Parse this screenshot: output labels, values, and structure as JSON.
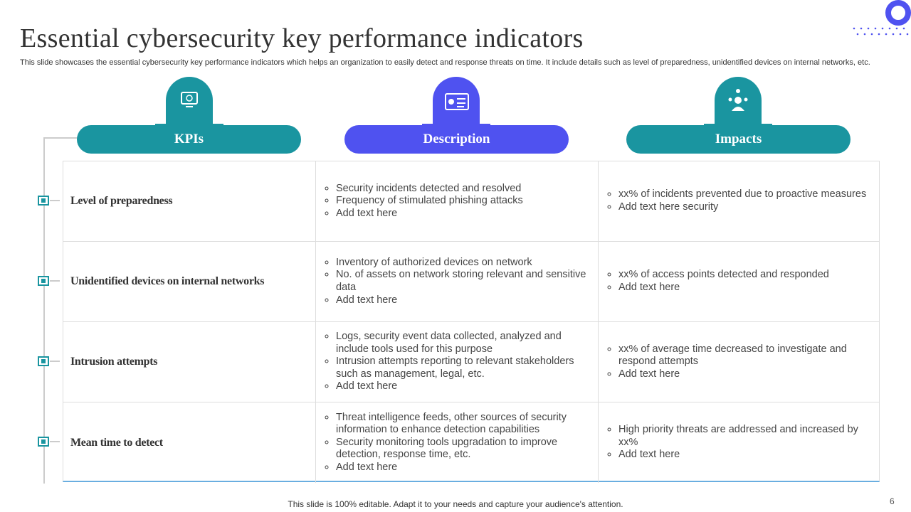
{
  "header": {
    "title": "Essential cybersecurity key performance indicators",
    "subtitle": "This slide showcases the essential cybersecurity key performance indicators which helps an organization to easily detect and response threats on time. It include details such as level of preparedness, unidentified devices on internal networks, etc."
  },
  "table": {
    "columns": [
      "KPIs",
      "Description",
      "Impacts"
    ],
    "rows": [
      {
        "kpi": "Level of preparedness",
        "description": [
          "Security incidents detected and resolved",
          "Frequency of stimulated phishing attacks",
          "Add text here"
        ],
        "impacts": [
          "xx% of incidents prevented due to proactive measures",
          "Add text here  security"
        ]
      },
      {
        "kpi": "Unidentified devices on internal networks",
        "description": [
          "Inventory of authorized devices on network",
          "No. of assets on network storing relevant and sensitive data",
          "Add text here"
        ],
        "impacts": [
          "xx% of access points detected and responded",
          "Add text here"
        ]
      },
      {
        "kpi": "Intrusion attempts",
        "description": [
          "Logs, security event data collected, analyzed and include tools used for this purpose",
          "Intrusion attempts reporting to relevant stakeholders such as management, legal, etc.",
          "Add text here"
        ],
        "impacts": [
          "xx% of average time decreased to investigate and respond attempts",
          "Add text here"
        ]
      },
      {
        "kpi": "Mean time to detect",
        "description": [
          "Threat intelligence feeds, other sources of security information to enhance detection capabilities",
          "Security monitoring tools upgradation to improve detection, response time, etc.",
          "Add text here"
        ],
        "impacts": [
          "High priority threats are addressed and  increased by xx%",
          "Add text here"
        ]
      }
    ]
  },
  "footer": {
    "note": "This slide is 100% editable. Adapt it to your needs and capture your audience's attention.",
    "page": "6"
  }
}
